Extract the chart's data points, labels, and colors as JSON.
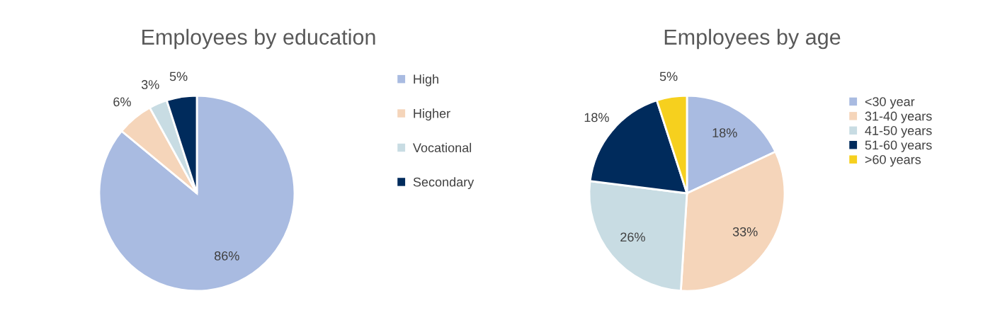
{
  "chart_data": [
    {
      "type": "pie",
      "title": "Employees by education",
      "categories": [
        "High",
        "Higher",
        "Vocational",
        "Secondary"
      ],
      "values": [
        86,
        6,
        3,
        5
      ],
      "colors": [
        "#a9bbe1",
        "#f5d5ba",
        "#c8dce3",
        "#002b5c"
      ],
      "value_labels": [
        "86%",
        "6%",
        "3%",
        "5%"
      ],
      "legend": "right"
    },
    {
      "type": "pie",
      "title": "Employees by age",
      "categories": [
        "<30 year",
        "31-40 years",
        "41-50 years",
        "51-60 years",
        ">60 years"
      ],
      "values": [
        18,
        33,
        26,
        18,
        5
      ],
      "colors": [
        "#a9bbe1",
        "#f5d5ba",
        "#c8dce3",
        "#002b5c",
        "#f6d01e"
      ],
      "value_labels": [
        "18%",
        "33%",
        "26%",
        "18%",
        "5%"
      ],
      "legend": "right"
    }
  ]
}
